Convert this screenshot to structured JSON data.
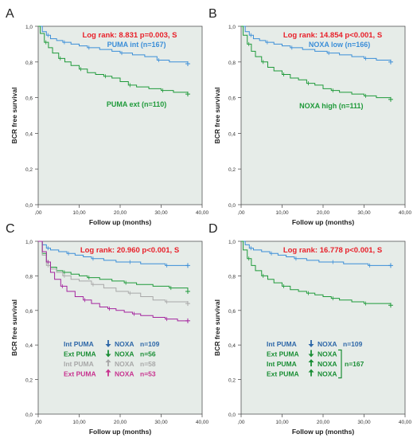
{
  "colors": {
    "plot_bg": "#e6ece8",
    "red": "#e8202a",
    "blue": "#3b8ed8",
    "green": "#1f9a3a",
    "gray": "#a8a8a8",
    "purple": "#a4259e",
    "dark_blue": "#2e67a8",
    "dark_green": "#1a8e35",
    "magenta": "#c8328f"
  },
  "chart_data": [
    {
      "panel": "A",
      "type": "line",
      "stat": "Log rank: 8.831 p=0.003, S",
      "xlabel": "Follow up (months)",
      "ylabel": "BCR free survival",
      "xlim": [
        0,
        40
      ],
      "ylim": [
        0,
        1.0
      ],
      "xticks": [
        ",00",
        "10,00",
        "20,00",
        "30,00",
        "40,00"
      ],
      "yticks": [
        "0,0",
        "0,2",
        "0,4",
        "0,6",
        "0,8",
        "1,0"
      ],
      "series": [
        {
          "name": "PUMA int (n=167)",
          "color": "#3b8ed8",
          "x": [
            0,
            1,
            2,
            3,
            4.5,
            6,
            8,
            10,
            12,
            15,
            18,
            20,
            23,
            26,
            29,
            32,
            36.5
          ],
          "y": [
            1.0,
            0.97,
            0.95,
            0.93,
            0.92,
            0.91,
            0.9,
            0.89,
            0.88,
            0.87,
            0.86,
            0.85,
            0.84,
            0.83,
            0.81,
            0.8,
            0.79
          ]
        },
        {
          "name": "PUMA ext (n=110)",
          "color": "#1f9a3a",
          "x": [
            0,
            0.5,
            1.5,
            2.5,
            3.5,
            5,
            6.5,
            8,
            10,
            12,
            14,
            16,
            18,
            20,
            22,
            24,
            27,
            30,
            33,
            36.5
          ],
          "y": [
            1.0,
            0.96,
            0.91,
            0.88,
            0.85,
            0.82,
            0.8,
            0.78,
            0.76,
            0.74,
            0.73,
            0.72,
            0.71,
            0.69,
            0.67,
            0.66,
            0.65,
            0.64,
            0.63,
            0.62
          ]
        }
      ]
    },
    {
      "panel": "B",
      "type": "line",
      "stat": "Log rank: 14.854 p<0.001, S",
      "xlabel": "Follow up (months)",
      "ylabel": "BCR free survival",
      "xlim": [
        0,
        40
      ],
      "ylim": [
        0,
        1.0
      ],
      "xticks": [
        ",00",
        "10,00",
        "20,00",
        "30,00",
        "40,00"
      ],
      "yticks": [
        "0,0",
        "0,2",
        "0,4",
        "0,6",
        "0,8",
        "1,0"
      ],
      "series": [
        {
          "name": "NOXA low (n=166)",
          "color": "#3b8ed8",
          "x": [
            0,
            1,
            2,
            3,
            4.5,
            6,
            8,
            10,
            12,
            15,
            18,
            21,
            24,
            27,
            30,
            33,
            36.5
          ],
          "y": [
            1.0,
            0.97,
            0.95,
            0.93,
            0.92,
            0.91,
            0.9,
            0.89,
            0.88,
            0.87,
            0.86,
            0.85,
            0.84,
            0.83,
            0.82,
            0.81,
            0.8
          ]
        },
        {
          "name": "NOXA high (n=111)",
          "color": "#1f9a3a",
          "x": [
            0,
            0.5,
            1.5,
            2.5,
            3.5,
            5,
            6.5,
            8,
            10,
            12,
            14,
            16,
            18,
            20,
            22,
            24,
            27,
            30,
            33,
            36.5
          ],
          "y": [
            1.0,
            0.95,
            0.9,
            0.86,
            0.83,
            0.8,
            0.77,
            0.75,
            0.73,
            0.71,
            0.7,
            0.68,
            0.67,
            0.65,
            0.64,
            0.63,
            0.62,
            0.61,
            0.6,
            0.59
          ]
        }
      ]
    },
    {
      "panel": "C",
      "type": "line",
      "stat": "Log rank: 20.960 p<0.001, S",
      "xlabel": "Follow up (months)",
      "ylabel": "BCR free survival",
      "xlim": [
        0,
        40
      ],
      "ylim": [
        0,
        1.0
      ],
      "xticks": [
        ",00",
        "10,00",
        "20,00",
        "30,00",
        "40,00"
      ],
      "yticks": [
        "0,0",
        "0,2",
        "0,4",
        "0,6",
        "0,8",
        "1,0"
      ],
      "legend": [
        {
          "group": "Int PUMA",
          "marker": "down",
          "gene": "NOXA",
          "n": "n=109",
          "color": "#2e67a8"
        },
        {
          "group": "Ext PUMA",
          "marker": "down",
          "gene": "NOXA",
          "n": "n=56",
          "color": "#1a8e35"
        },
        {
          "group": "Int PUMA",
          "marker": "up",
          "gene": "NOXA",
          "n": "n=58",
          "color": "#a8a8a8"
        },
        {
          "group": "Ext PUMA",
          "marker": "up",
          "gene": "NOXA",
          "n": "n=53",
          "color": "#c8328f"
        }
      ],
      "series": [
        {
          "color": "#3b8ed8",
          "x": [
            0,
            1,
            2,
            3,
            5,
            7,
            9,
            11,
            13,
            16,
            19,
            22,
            25,
            28,
            31,
            34,
            36.5
          ],
          "y": [
            1.0,
            0.98,
            0.96,
            0.95,
            0.94,
            0.93,
            0.92,
            0.91,
            0.9,
            0.89,
            0.88,
            0.88,
            0.87,
            0.87,
            0.86,
            0.86,
            0.86
          ]
        },
        {
          "color": "#1f9a3a",
          "x": [
            0,
            1,
            2,
            3,
            4.5,
            6,
            8,
            10,
            12,
            15,
            18,
            21,
            24,
            28,
            32,
            36.5
          ],
          "y": [
            1.0,
            0.93,
            0.88,
            0.85,
            0.83,
            0.82,
            0.81,
            0.8,
            0.79,
            0.78,
            0.77,
            0.76,
            0.75,
            0.74,
            0.73,
            0.71
          ]
        },
        {
          "color": "#a8a8a8",
          "x": [
            0,
            1,
            2,
            3,
            4.5,
            6,
            8,
            10,
            13,
            16,
            19,
            22,
            25,
            28,
            31,
            36.5
          ],
          "y": [
            1.0,
            0.92,
            0.86,
            0.84,
            0.82,
            0.8,
            0.78,
            0.77,
            0.75,
            0.73,
            0.71,
            0.7,
            0.68,
            0.66,
            0.65,
            0.64
          ]
        },
        {
          "color": "#a4259e",
          "x": [
            0,
            1,
            2,
            3,
            4,
            5.5,
            7,
            9,
            11,
            13,
            15,
            17,
            19,
            21,
            23,
            25,
            28,
            31,
            34,
            36.5
          ],
          "y": [
            1.0,
            0.94,
            0.88,
            0.82,
            0.78,
            0.74,
            0.71,
            0.68,
            0.66,
            0.64,
            0.62,
            0.61,
            0.6,
            0.59,
            0.58,
            0.57,
            0.56,
            0.55,
            0.54,
            0.54
          ]
        }
      ]
    },
    {
      "panel": "D",
      "type": "line",
      "stat": "Log rank: 16.778 p<0.001, S",
      "xlabel": "Follow up (months)",
      "ylabel": "BCR free survival",
      "xlim": [
        0,
        40
      ],
      "ylim": [
        0,
        1.0
      ],
      "xticks": [
        ",00",
        "10,00",
        "20,00",
        "30,00",
        "40,00"
      ],
      "yticks": [
        "0,0",
        "0,2",
        "0,4",
        "0,6",
        "0,8",
        "1,0"
      ],
      "legend": [
        {
          "group": "Int PUMA",
          "marker": "down",
          "gene": "NOXA",
          "n": "n=109",
          "color": "#2e67a8"
        },
        {
          "group": "Ext PUMA",
          "marker": "down",
          "gene": "NOXA",
          "n": "",
          "color": "#1a8e35"
        },
        {
          "group": "Int PUMA",
          "marker": "up",
          "gene": "NOXA",
          "n": "",
          "color": "#1a8e35"
        },
        {
          "group": "Ext PUMA",
          "marker": "up",
          "gene": "NOXA",
          "n": "",
          "color": "#1a8e35"
        }
      ],
      "bracket_label": "n=167",
      "series": [
        {
          "color": "#3b8ed8",
          "x": [
            0,
            1,
            2,
            3,
            5,
            7,
            9,
            11,
            13,
            16,
            19,
            22,
            25,
            28,
            31,
            34,
            36.5
          ],
          "y": [
            1.0,
            0.98,
            0.96,
            0.95,
            0.94,
            0.93,
            0.92,
            0.91,
            0.9,
            0.89,
            0.88,
            0.88,
            0.87,
            0.87,
            0.86,
            0.86,
            0.86
          ]
        },
        {
          "color": "#1f9a3a",
          "x": [
            0,
            0.5,
            1.5,
            2.5,
            3.5,
            5,
            6.5,
            8,
            10,
            12,
            14,
            16,
            18,
            20,
            22,
            24,
            27,
            30,
            33,
            36.5
          ],
          "y": [
            1.0,
            0.95,
            0.9,
            0.86,
            0.83,
            0.8,
            0.78,
            0.76,
            0.74,
            0.72,
            0.71,
            0.7,
            0.69,
            0.68,
            0.67,
            0.66,
            0.65,
            0.64,
            0.64,
            0.63
          ]
        }
      ]
    }
  ]
}
